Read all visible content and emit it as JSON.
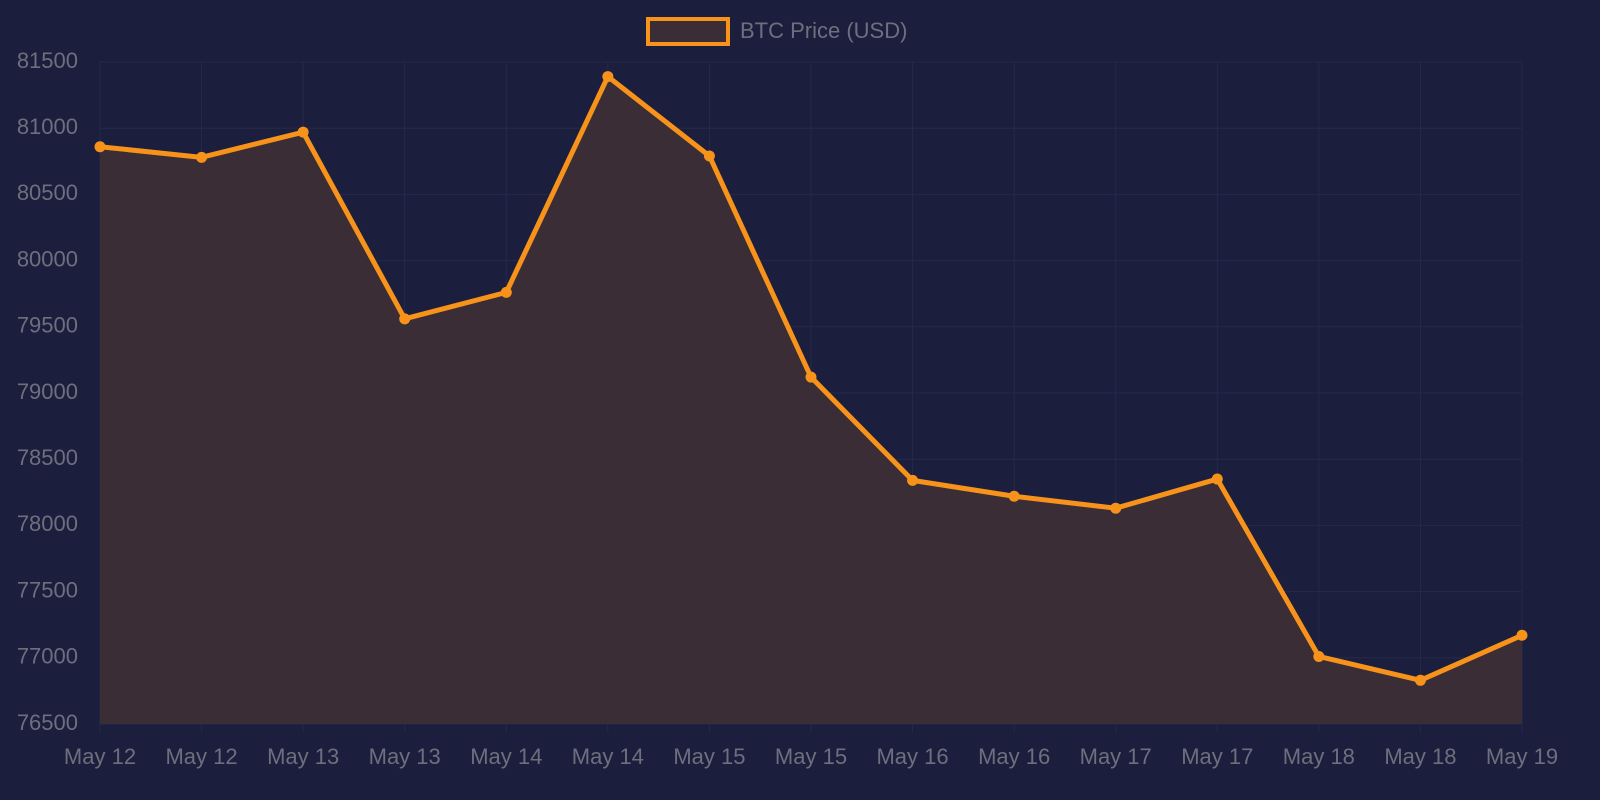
{
  "chart_data": {
    "type": "line",
    "categories": [
      "May 12",
      "May 12",
      "May 13",
      "May 13",
      "May 14",
      "May 14",
      "May 15",
      "May 15",
      "May 16",
      "May 16",
      "May 17",
      "May 17",
      "May 18",
      "May 18",
      "May 19"
    ],
    "series": [
      {
        "name": "BTC Price (USD)",
        "color": "#f7931a",
        "fill_color": "#3a2d35",
        "values": [
          80860,
          80780,
          80970,
          79560,
          79760,
          81390,
          80790,
          79120,
          78340,
          78220,
          78130,
          78350,
          77010,
          76830,
          77170
        ]
      }
    ],
    "ylim": [
      76500,
      81500
    ],
    "yticks": [
      76500,
      77000,
      77500,
      78000,
      78500,
      79000,
      79500,
      80000,
      80500,
      81000,
      81500
    ],
    "grid": true,
    "fill": true,
    "legend": "top"
  }
}
